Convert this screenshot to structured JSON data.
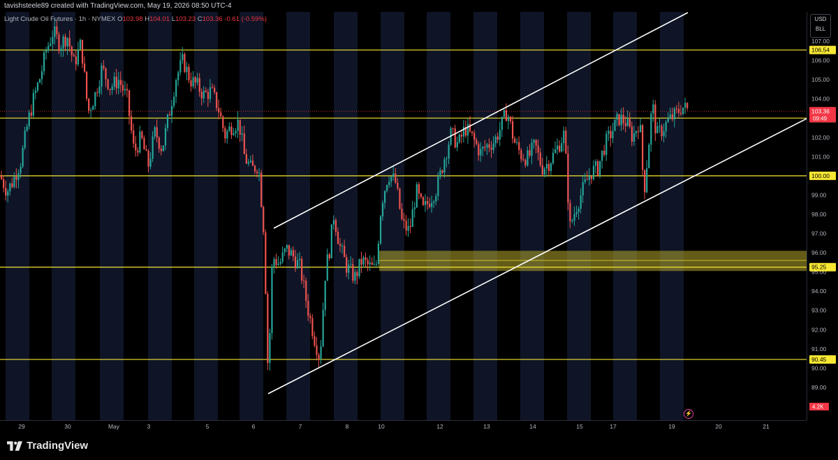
{
  "header": {
    "attribution": "tavishsteele89 created with TradingView.com, May 19, 2026 08:50 UTC-4"
  },
  "legend": {
    "symbol": "Light Crude Oil Futures · 1h · NYMEX",
    "o_label": "O",
    "o": "103.98",
    "h_label": "H",
    "h": "104.01",
    "l_label": "L",
    "l": "103.23",
    "c_label": "C",
    "c": "103.36",
    "change": "-0.61 (-0.59%)"
  },
  "currency": {
    "line1": "USD",
    "line2": "BLL"
  },
  "footer": {
    "brand": "TradingView"
  },
  "colors": {
    "background": "#000000",
    "up": "#26a69a",
    "down": "#ef5350",
    "level": "#f7e733",
    "zone": "#b5a52a",
    "channel": "#ffffff",
    "session_band": "#0f1526",
    "price_badge": "#f23645"
  },
  "chart_data": {
    "type": "candlestick",
    "title": "Light Crude Oil Futures · 1h · NYMEX",
    "xlabel": "",
    "ylabel": "",
    "ylim": [
      88.1,
      107.5
    ],
    "y_ticks": [
      "107.00",
      "106.00",
      "105.00",
      "104.00",
      "103.00",
      "102.00",
      "101.00",
      "100.00",
      "99.00",
      "98.00",
      "97.00",
      "96.00",
      "95.00",
      "94.00",
      "93.00",
      "92.00",
      "91.00",
      "90.00",
      "89.00"
    ],
    "x_ticks": [
      "29",
      "30",
      "May",
      "3",
      "5",
      "6",
      "7",
      "8",
      "10",
      "12",
      "13",
      "14",
      "15",
      "17",
      "19",
      "20",
      "21"
    ],
    "grid": false,
    "horizontal_levels": [
      {
        "price": 106.54,
        "label": "106.54"
      },
      {
        "price": 103.0,
        "label": "103.00"
      },
      {
        "price": 100.0,
        "label": "100.00"
      },
      {
        "price": 95.25,
        "label": "95.25"
      },
      {
        "price": 90.45,
        "label": "90.45"
      }
    ],
    "zone": {
      "low": 95.05,
      "high": 96.1,
      "mid": 95.6
    },
    "current_price": {
      "value": 103.36,
      "label": "103.36",
      "countdown": "09:49"
    },
    "volume_badge": "4.2K",
    "channel": {
      "upper": [
        [
          "6 00:00",
          97.3
        ],
        [
          "19 12:00",
          107.5
        ]
      ],
      "lower": [
        [
          "6 00:00",
          88.7
        ],
        [
          "21 12:00",
          102.9
        ]
      ]
    },
    "price_path": [
      [
        0,
        100.0
      ],
      [
        10,
        99.2
      ],
      [
        18,
        99.7
      ],
      [
        30,
        100.8
      ],
      [
        40,
        102.8
      ],
      [
        48,
        104.0
      ],
      [
        58,
        105.2
      ],
      [
        66,
        106.5
      ],
      [
        76,
        107.5
      ],
      [
        86,
        106.8
      ],
      [
        96,
        107.3
      ],
      [
        106,
        105.8
      ],
      [
        116,
        106.9
      ],
      [
        126,
        103.3
      ],
      [
        136,
        104.2
      ],
      [
        146,
        105.6
      ],
      [
        158,
        104.6
      ],
      [
        170,
        105.0
      ],
      [
        182,
        104.0
      ],
      [
        192,
        101.2
      ],
      [
        202,
        102.0
      ],
      [
        212,
        100.5
      ],
      [
        222,
        102.3
      ],
      [
        232,
        101.4
      ],
      [
        242,
        103.2
      ],
      [
        252,
        105.1
      ],
      [
        262,
        106.0
      ],
      [
        272,
        105.0
      ],
      [
        282,
        104.7
      ],
      [
        292,
        104.2
      ],
      [
        302,
        104.4
      ],
      [
        312,
        103.6
      ],
      [
        322,
        102.1
      ],
      [
        332,
        102.6
      ],
      [
        342,
        102.8
      ],
      [
        350,
        101.0
      ],
      [
        360,
        100.3
      ],
      [
        370,
        100.6
      ],
      [
        378,
        97.0
      ],
      [
        384,
        89.4
      ],
      [
        390,
        95.8
      ],
      [
        400,
        95.4
      ],
      [
        410,
        96.2
      ],
      [
        420,
        95.8
      ],
      [
        430,
        95.2
      ],
      [
        440,
        93.2
      ],
      [
        450,
        91.6
      ],
      [
        458,
        90.5
      ],
      [
        466,
        95.1
      ],
      [
        472,
        96.2
      ],
      [
        478,
        98.0
      ],
      [
        486,
        96.4
      ],
      [
        496,
        95.3
      ],
      [
        508,
        94.7
      ],
      [
        518,
        95.6
      ],
      [
        528,
        95.3
      ],
      [
        538,
        95.1
      ],
      [
        546,
        98.6
      ],
      [
        556,
        100.1
      ],
      [
        566,
        99.7
      ],
      [
        576,
        97.5
      ],
      [
        586,
        97.1
      ],
      [
        596,
        99.2
      ],
      [
        606,
        98.2
      ],
      [
        616,
        98.8
      ],
      [
        626,
        99.4
      ],
      [
        636,
        100.9
      ],
      [
        646,
        102.2
      ],
      [
        656,
        101.6
      ],
      [
        666,
        102.5
      ],
      [
        676,
        102.0
      ],
      [
        688,
        101.2
      ],
      [
        698,
        101.6
      ],
      [
        708,
        101.8
      ],
      [
        718,
        102.6
      ],
      [
        726,
        103.4
      ],
      [
        736,
        101.8
      ],
      [
        746,
        101.1
      ],
      [
        756,
        100.9
      ],
      [
        766,
        101.6
      ],
      [
        776,
        100.4
      ],
      [
        786,
        100.7
      ],
      [
        796,
        101.3
      ],
      [
        808,
        102.2
      ],
      [
        816,
        97.3
      ],
      [
        826,
        98.5
      ],
      [
        836,
        99.4
      ],
      [
        846,
        100.2
      ],
      [
        856,
        100.4
      ],
      [
        866,
        101.6
      ],
      [
        876,
        102.3
      ],
      [
        886,
        103.0
      ],
      [
        896,
        102.8
      ],
      [
        906,
        102.0
      ],
      [
        916,
        102.9
      ],
      [
        922,
        99.1
      ],
      [
        928,
        101.3
      ],
      [
        934,
        103.8
      ],
      [
        940,
        102.1
      ],
      [
        948,
        102.4
      ],
      [
        958,
        102.9
      ],
      [
        968,
        103.2
      ],
      [
        976,
        103.6
      ],
      [
        986,
        103.4
      ]
    ]
  }
}
